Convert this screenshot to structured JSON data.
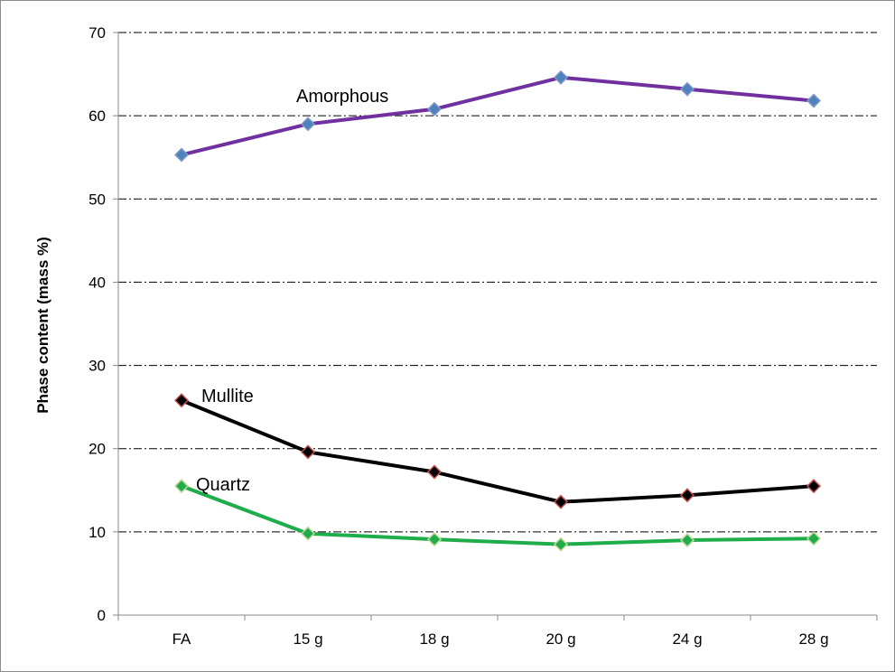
{
  "chart_data": {
    "type": "line",
    "title": "",
    "xlabel": "",
    "ylabel": "Phase content (mass %)",
    "categories": [
      "FA",
      "15 g",
      "18 g",
      "20 g",
      "24 g",
      "28 g"
    ],
    "yticks": [
      "0",
      "10",
      "20",
      "30",
      "40",
      "50",
      "60",
      "70"
    ],
    "ylim": [
      0,
      70
    ],
    "grid": true,
    "legend": "none",
    "series": [
      {
        "name": "Amorphous",
        "values": [
          55.3,
          59.0,
          60.8,
          64.6,
          63.2,
          61.8
        ],
        "line_color": "#7030A0",
        "marker_fill": "#4F81BD",
        "marker_edge": "#7F9BC8"
      },
      {
        "name": "Mullite",
        "values": [
          25.8,
          19.6,
          17.2,
          13.6,
          14.4,
          15.5
        ],
        "line_color": "#000000",
        "marker_fill": "#000000",
        "marker_edge": "#C0504D"
      },
      {
        "name": "Quartz",
        "values": [
          15.5,
          9.8,
          9.1,
          8.5,
          9.0,
          9.2
        ],
        "line_color": "#1FAD4B",
        "marker_fill": "#1FAD4B",
        "marker_edge": "#C4D79B"
      }
    ]
  }
}
